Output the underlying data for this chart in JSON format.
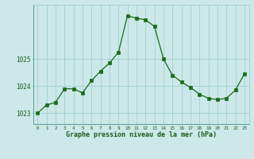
{
  "x": [
    0,
    1,
    2,
    3,
    4,
    5,
    6,
    7,
    8,
    9,
    10,
    11,
    12,
    13,
    14,
    15,
    16,
    17,
    18,
    19,
    20,
    21,
    22,
    23
  ],
  "y": [
    1023.0,
    1023.3,
    1023.4,
    1023.9,
    1023.9,
    1023.75,
    1024.2,
    1024.55,
    1024.85,
    1025.25,
    1026.6,
    1026.5,
    1026.45,
    1026.2,
    1025.0,
    1024.4,
    1024.15,
    1023.95,
    1023.7,
    1023.55,
    1023.5,
    1023.55,
    1023.85,
    1024.45
  ],
  "line_color": "#1a6b1a",
  "marker_color": "#1a6b1a",
  "bg_color": "#cce8e8",
  "grid_color": "#99cccc",
  "axis_label_color": "#1a5c1a",
  "tick_label_color": "#1a5c1a",
  "xlabel": "Graphe pression niveau de la mer (hPa)",
  "yticks": [
    1023,
    1024,
    1025
  ],
  "ylim": [
    1022.6,
    1027.0
  ],
  "xlim": [
    -0.5,
    23.5
  ]
}
